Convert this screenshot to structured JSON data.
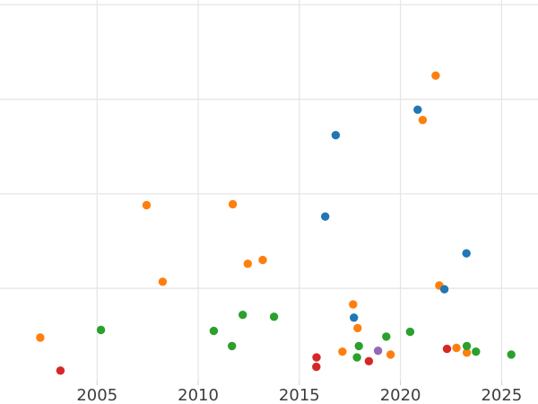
{
  "figure": {
    "background": "#ffffff",
    "grid_color": "#e6e6e6",
    "tick_mark_color": "#cccccc",
    "tick_label_color": "#3d3d3d"
  },
  "chart_data": {
    "type": "scatter",
    "title": "",
    "xlabel": "",
    "ylabel": "",
    "grid": true,
    "legend": "none",
    "xlim": [
      2000.2,
      2026.8
    ],
    "ylim": [
      0,
      4.05
    ],
    "x_ticks": [
      {
        "value": 2005,
        "label": "2005"
      },
      {
        "value": 2010,
        "label": "2010"
      },
      {
        "value": 2015,
        "label": "2015"
      },
      {
        "value": 2020,
        "label": "2020"
      },
      {
        "value": 2025,
        "label": "2025"
      }
    ],
    "y_gridlines": [
      1,
      2,
      3,
      4
    ],
    "y_tick_labels_visible": false,
    "series": [
      {
        "name": "orange",
        "color": "#ff7f0e",
        "points": [
          {
            "x": 2021.74,
            "y": 3.25
          },
          {
            "x": 2021.1,
            "y": 2.78
          },
          {
            "x": 2007.45,
            "y": 1.88
          },
          {
            "x": 2011.71,
            "y": 1.89
          },
          {
            "x": 2012.45,
            "y": 1.26
          },
          {
            "x": 2013.19,
            "y": 1.3
          },
          {
            "x": 2008.24,
            "y": 1.07
          },
          {
            "x": 2002.19,
            "y": 0.48
          },
          {
            "x": 2021.92,
            "y": 1.03
          },
          {
            "x": 2017.66,
            "y": 0.83
          },
          {
            "x": 2017.88,
            "y": 0.58
          },
          {
            "x": 2017.13,
            "y": 0.33
          },
          {
            "x": 2019.51,
            "y": 0.3
          },
          {
            "x": 2022.77,
            "y": 0.37
          },
          {
            "x": 2023.28,
            "y": 0.32
          }
        ]
      },
      {
        "name": "blue",
        "color": "#1f77b4",
        "points": [
          {
            "x": 2016.8,
            "y": 2.62
          },
          {
            "x": 2016.28,
            "y": 1.76
          },
          {
            "x": 2020.85,
            "y": 2.89
          },
          {
            "x": 2023.26,
            "y": 1.37
          },
          {
            "x": 2022.17,
            "y": 0.99
          },
          {
            "x": 2017.7,
            "y": 0.69
          }
        ]
      },
      {
        "name": "red",
        "color": "#d62728",
        "points": [
          {
            "x": 2003.19,
            "y": 0.13
          },
          {
            "x": 2015.85,
            "y": 0.27
          },
          {
            "x": 2015.84,
            "y": 0.17
          },
          {
            "x": 2018.44,
            "y": 0.23
          },
          {
            "x": 2022.3,
            "y": 0.36
          }
        ]
      },
      {
        "name": "green",
        "color": "#2ca02c",
        "points": [
          {
            "x": 2005.19,
            "y": 0.56
          },
          {
            "x": 2010.77,
            "y": 0.55
          },
          {
            "x": 2011.67,
            "y": 0.39
          },
          {
            "x": 2012.2,
            "y": 0.72
          },
          {
            "x": 2013.75,
            "y": 0.7
          },
          {
            "x": 2017.94,
            "y": 0.39
          },
          {
            "x": 2019.3,
            "y": 0.49
          },
          {
            "x": 2020.48,
            "y": 0.54
          },
          {
            "x": 2017.85,
            "y": 0.27
          },
          {
            "x": 2023.28,
            "y": 0.39
          },
          {
            "x": 2023.73,
            "y": 0.33
          },
          {
            "x": 2025.48,
            "y": 0.3
          }
        ]
      },
      {
        "name": "purple",
        "color": "#9467bd",
        "points": [
          {
            "x": 2018.89,
            "y": 0.34
          }
        ]
      }
    ]
  }
}
